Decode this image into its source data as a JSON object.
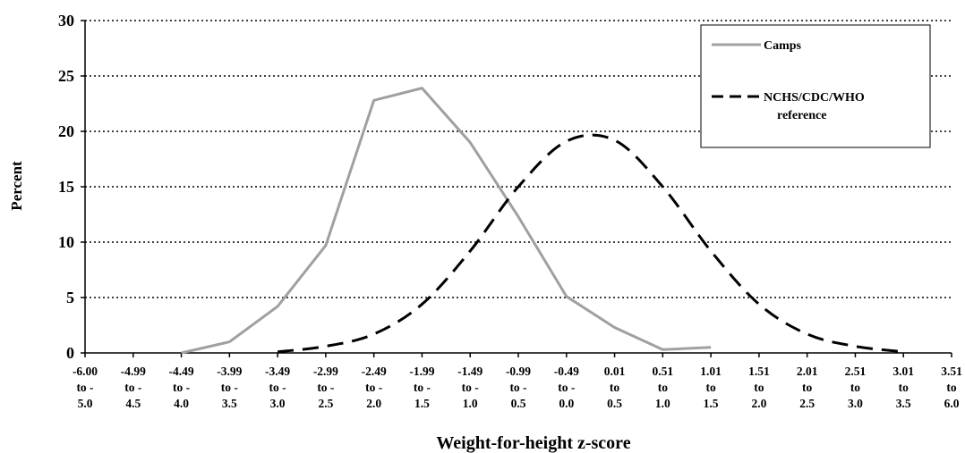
{
  "chart_data": {
    "type": "line",
    "xlabel": "Weight-for-height z-score",
    "ylabel": "Percent",
    "ylim": [
      0,
      30
    ],
    "yticks": [
      0,
      5,
      10,
      15,
      20,
      25,
      30
    ],
    "grid": "horizontal dotted",
    "legend_position": "top-right",
    "categories": [
      [
        "-6.00",
        "to -",
        "5.0"
      ],
      [
        "-4.99",
        "to -",
        "4.5"
      ],
      [
        "-4.49",
        "to -",
        "4.0"
      ],
      [
        "-3.99",
        "to -",
        "3.5"
      ],
      [
        "-3.49",
        "to -",
        "3.0"
      ],
      [
        "-2.99",
        "to -",
        "2.5"
      ],
      [
        "-2.49",
        "to -",
        "2.0"
      ],
      [
        "-1.99",
        "to -",
        "1.5"
      ],
      [
        "-1.49",
        "to -",
        "1.0"
      ],
      [
        "-0.99",
        "to -",
        "0.5"
      ],
      [
        "-0.49",
        "to -",
        "0.0"
      ],
      [
        "0.01",
        "to",
        "0.5"
      ],
      [
        "0.51",
        "to",
        "1.0"
      ],
      [
        "1.01",
        "to",
        "1.5"
      ],
      [
        "1.51",
        "to",
        "2.0"
      ],
      [
        "2.01",
        "to",
        "2.5"
      ],
      [
        "2.51",
        "to",
        "3.0"
      ],
      [
        "3.01",
        "to",
        "3.5"
      ],
      [
        "3.51",
        "to",
        "6.0"
      ]
    ],
    "series": [
      {
        "name": "Camps",
        "color": "#a0a0a0",
        "style": "solid",
        "values": [
          null,
          null,
          0.0,
          1.0,
          4.2,
          9.7,
          22.8,
          23.9,
          19.0,
          12.3,
          5.1,
          2.3,
          0.3,
          0.5,
          null,
          null,
          null,
          null,
          null
        ]
      },
      {
        "name": "NCHS/CDC/WHO reference",
        "color": "#000000",
        "style": "dashed",
        "values": [
          null,
          null,
          null,
          null,
          0.1,
          0.6,
          1.7,
          4.4,
          9.2,
          15.0,
          19.1,
          19.2,
          15.0,
          9.2,
          4.4,
          1.7,
          0.6,
          0.1,
          null
        ]
      }
    ]
  }
}
